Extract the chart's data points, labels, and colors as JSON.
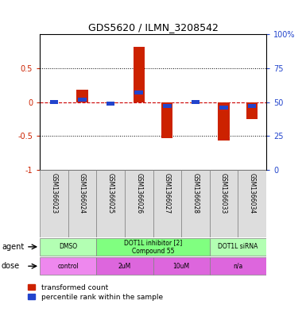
{
  "title": "GDS5620 / ILMN_3208542",
  "samples": [
    "GSM1366023",
    "GSM1366024",
    "GSM1366025",
    "GSM1366026",
    "GSM1366027",
    "GSM1366028",
    "GSM1366033",
    "GSM1366034"
  ],
  "red_values": [
    0.0,
    0.18,
    -0.02,
    0.82,
    -0.53,
    -0.02,
    -0.57,
    -0.25
  ],
  "blue_values_raw": [
    50,
    52,
    49,
    57,
    47,
    50,
    46,
    47
  ],
  "agent_groups": [
    {
      "label": "DMSO",
      "start": 0,
      "end": 2,
      "color": "#b3ffb3"
    },
    {
      "label": "DOT1L inhibitor [2]\nCompound 55",
      "start": 2,
      "end": 6,
      "color": "#80ff80"
    },
    {
      "label": "DOT1L siRNA",
      "start": 6,
      "end": 8,
      "color": "#b3ffb3"
    }
  ],
  "dose_groups": [
    {
      "label": "control",
      "start": 0,
      "end": 2,
      "color": "#ee88ee"
    },
    {
      "label": "2uM",
      "start": 2,
      "end": 4,
      "color": "#dd66dd"
    },
    {
      "label": "10uM",
      "start": 4,
      "end": 6,
      "color": "#dd66dd"
    },
    {
      "label": "n/a",
      "start": 6,
      "end": 8,
      "color": "#dd66dd"
    }
  ],
  "ylim": [
    -1,
    1
  ],
  "yticks_left": [
    -1,
    -0.5,
    0,
    0.5
  ],
  "yticklabels_left": [
    "-1",
    "-0.5",
    "0",
    "0.5"
  ],
  "yticks_right": [
    0,
    25,
    50,
    75,
    100
  ],
  "yticklabels_right": [
    "0",
    "25",
    "50",
    "75",
    "100%"
  ],
  "bar_width": 0.4,
  "blue_bar_width": 0.3,
  "blue_bar_height": 0.06,
  "red_color": "#cc2200",
  "blue_color": "#2244cc",
  "zero_line_color": "#cc0000",
  "sample_bg_color": "#dddddd",
  "legend_red_label": "transformed count",
  "legend_blue_label": "percentile rank within the sample",
  "agent_label": "agent",
  "dose_label": "dose"
}
